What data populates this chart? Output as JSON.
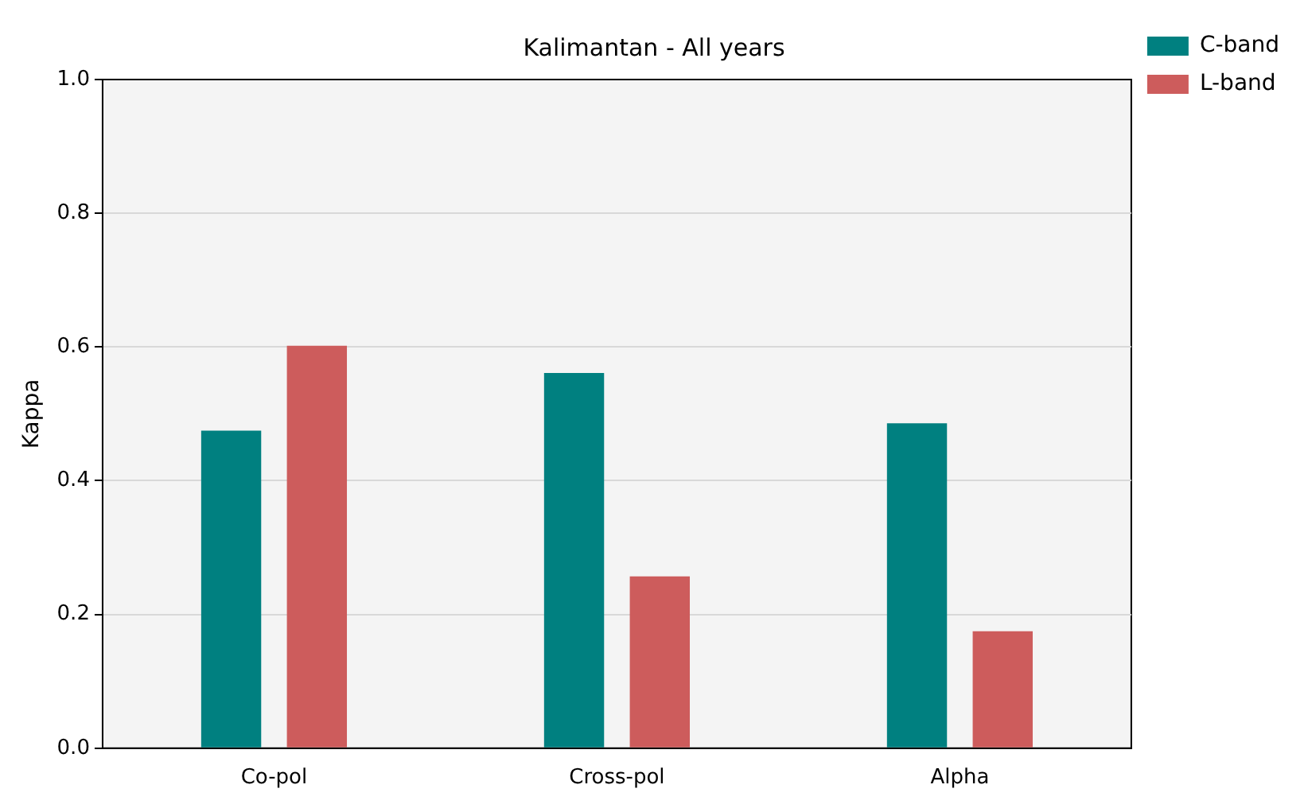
{
  "chart_data": {
    "type": "bar",
    "title": "Kalimantan - All years",
    "ylabel": "Kappa",
    "categories": [
      "Co-pol",
      "Cross-pol",
      "Alpha"
    ],
    "series": [
      {
        "name": "C-band",
        "color": "#008080",
        "values": [
          0.475,
          0.561,
          0.486
        ]
      },
      {
        "name": "L-band",
        "color": "#cd5c5c",
        "values": [
          0.602,
          0.257,
          0.175
        ]
      }
    ],
    "ylim": [
      0,
      1
    ],
    "yticks": [
      {
        "value": 0,
        "label": "0.0"
      },
      {
        "value": 0.2,
        "label": "0.2"
      },
      {
        "value": 0.4,
        "label": "0.4"
      },
      {
        "value": 0.6,
        "label": "0.6"
      },
      {
        "value": 0.8,
        "label": "0.8"
      },
      {
        "value": 1,
        "label": "1.0"
      }
    ],
    "grid": "y",
    "legend": "top right"
  }
}
